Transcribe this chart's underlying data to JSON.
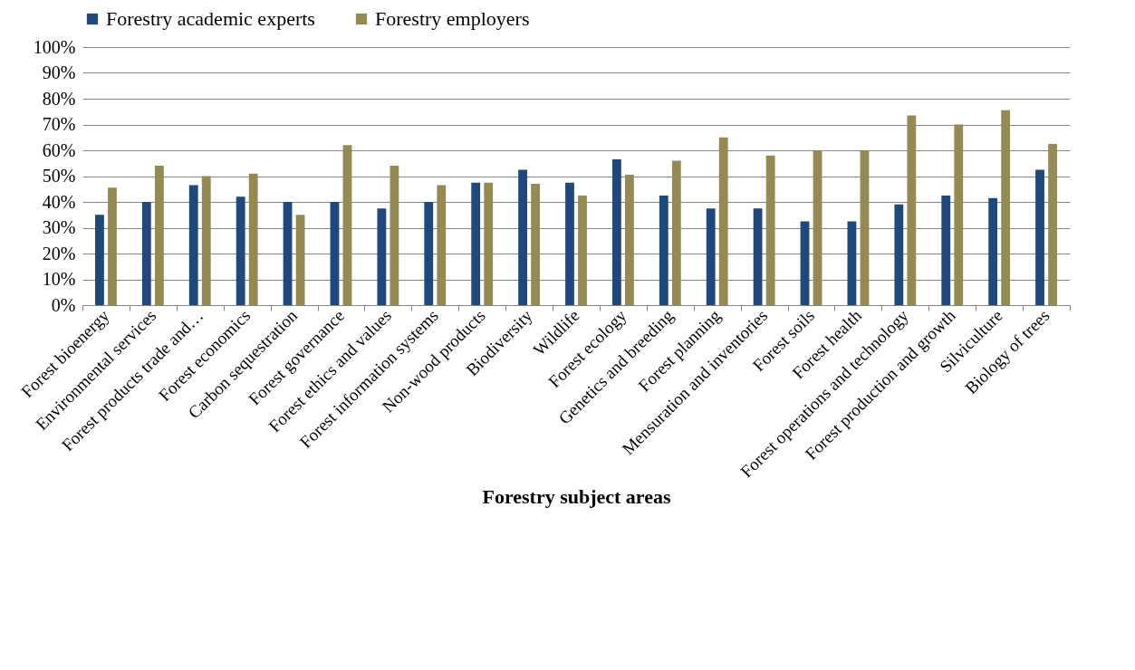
{
  "chart_data": {
    "type": "bar",
    "xlabel": "Forestry subject areas",
    "categories": [
      "Forest bioenergy",
      "Environmental services",
      "Forest products trade and…",
      "Forest economics",
      "Carbon sequestration",
      "Forest governance",
      "Forest ethics and values",
      "Forest information systems",
      "Non-wood products",
      "Biodiversity",
      "Wildlife",
      "Forest ecology",
      "Genetics and breeding",
      "Forest planning",
      "Mensuration and inventories",
      "Forest soils",
      "Forest health",
      "Forest operations and technology",
      "Forest production and growth",
      "Silviculture",
      "Biology of trees"
    ],
    "series": [
      {
        "name": "Forestry academic experts",
        "color": "#1f497d",
        "values": [
          35,
          40,
          46.5,
          42,
          40,
          40,
          37.5,
          40,
          47.5,
          52.5,
          47.5,
          56.5,
          42.5,
          37.5,
          37.5,
          32.5,
          32.5,
          39,
          42.5,
          41.5,
          52.5
        ]
      },
      {
        "name": "Forestry employers",
        "color": "#948a54",
        "values": [
          45.5,
          54,
          50,
          51,
          35,
          62,
          54,
          46.5,
          47.5,
          47,
          42.5,
          50.5,
          56,
          65,
          58,
          60,
          60,
          73.5,
          70,
          75.5,
          62.5
        ]
      }
    ],
    "ylim": [
      0,
      100
    ],
    "yticks": [
      {
        "value": 0,
        "label": "0%"
      },
      {
        "value": 10,
        "label": "10%"
      },
      {
        "value": 20,
        "label": "20%"
      },
      {
        "value": 30,
        "label": "30%"
      },
      {
        "value": 40,
        "label": "40%"
      },
      {
        "value": 50,
        "label": "50%"
      },
      {
        "value": 60,
        "label": "60%"
      },
      {
        "value": 70,
        "label": "70%"
      },
      {
        "value": 80,
        "label": "80%"
      },
      {
        "value": 90,
        "label": "90%"
      },
      {
        "value": 100,
        "label": "100%"
      }
    ],
    "grid": "y",
    "legend": "top"
  }
}
